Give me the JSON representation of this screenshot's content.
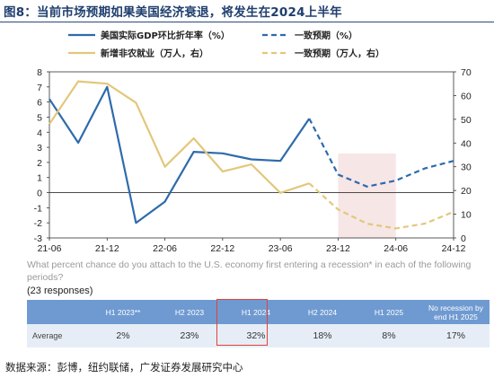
{
  "title": "图8：当前市场预期如果美国经济衰退，将发生在2024上半年",
  "chart_data": {
    "type": "line",
    "legend": [
      {
        "label": "美国实际GDP环比折年率（%）",
        "color": "#2e6aad",
        "style": "solid"
      },
      {
        "label": "一致预期（%）",
        "color": "#2e6aad",
        "style": "dashed"
      },
      {
        "label": "新增非农就业（万人，右）",
        "color": "#e3c77a",
        "style": "solid"
      },
      {
        "label": "一致预期（万人，右）",
        "color": "#e3c77a",
        "style": "dashed"
      }
    ],
    "x_ticks": [
      "21-06",
      "21-12",
      "22-06",
      "22-12",
      "23-06",
      "23-12",
      "24-06",
      "24-12"
    ],
    "y_left": {
      "min": -3,
      "max": 8,
      "ticks": [
        -3,
        -2,
        -1,
        0,
        1,
        2,
        3,
        4,
        5,
        6,
        7,
        8
      ]
    },
    "y_right": {
      "min": 0,
      "max": 70,
      "ticks": [
        0,
        10,
        20,
        30,
        40,
        50,
        60,
        70
      ]
    },
    "shaded_region": {
      "x_start": "2023-12",
      "x_end": "2024-06"
    },
    "series": [
      {
        "name": "美国实际GDP环比折年率（%）",
        "axis": "left",
        "points": [
          [
            "2021-06",
            6.2
          ],
          [
            "2021-09",
            3.3
          ],
          [
            "2021-12",
            7.0
          ],
          [
            "2022-03",
            -2.0
          ],
          [
            "2022-06",
            -0.6
          ],
          [
            "2022-09",
            2.7
          ],
          [
            "2022-12",
            2.6
          ],
          [
            "2023-03",
            2.2
          ],
          [
            "2023-06",
            2.1
          ],
          [
            "2023-09",
            4.9
          ]
        ]
      },
      {
        "name": "一致预期（%）",
        "axis": "left",
        "points": [
          [
            "2023-09",
            4.9
          ],
          [
            "2023-12",
            1.2
          ],
          [
            "2024-03",
            0.4
          ],
          [
            "2024-06",
            0.8
          ],
          [
            "2024-09",
            1.6
          ],
          [
            "2024-12",
            2.1
          ]
        ]
      },
      {
        "name": "新增非农就业（万人，右）",
        "axis": "right",
        "points": [
          [
            "2021-06",
            48
          ],
          [
            "2021-09",
            66
          ],
          [
            "2021-12",
            65
          ],
          [
            "2022-03",
            57
          ],
          [
            "2022-06",
            30
          ],
          [
            "2022-09",
            42
          ],
          [
            "2022-12",
            28
          ],
          [
            "2023-03",
            31
          ],
          [
            "2023-06",
            19
          ],
          [
            "2023-09",
            23
          ]
        ]
      },
      {
        "name": "一致预期（万人，右）",
        "axis": "right",
        "points": [
          [
            "2023-09",
            23
          ],
          [
            "2023-12",
            12
          ],
          [
            "2024-03",
            6
          ],
          [
            "2024-06",
            4
          ],
          [
            "2024-09",
            6
          ],
          [
            "2024-12",
            11
          ]
        ]
      }
    ]
  },
  "survey": {
    "question": "What percent chance do you attach to the U.S. economy first entering a recession* in each of the following periods?",
    "responses": "(23 responses)",
    "headers": [
      "",
      "H1 2023**",
      "H2 2023",
      "H1 2024",
      "H2 2024",
      "H1 2025",
      "No recession by end H1 2025"
    ],
    "row_label": "Average",
    "values": [
      "2%",
      "23%",
      "32%",
      "18%",
      "8%",
      "17%"
    ],
    "highlight_column": "H1 2024",
    "highlight_color": "#e3423a"
  },
  "source": "数据来源：彭博，纽约联储，广发证券发展研究中心"
}
